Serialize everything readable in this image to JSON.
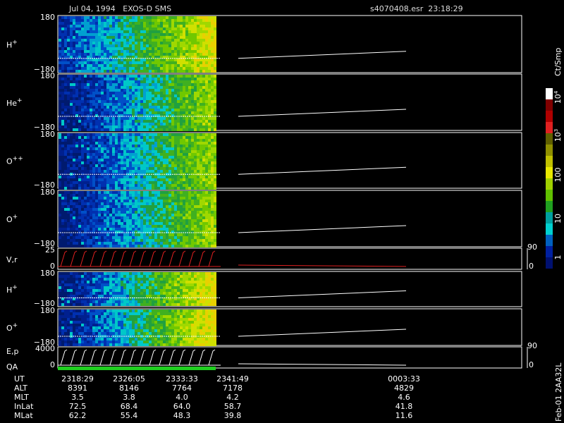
{
  "header": {
    "title": "Jul 04, 1994   EXOS-D SMS",
    "file": "s4070408.esr  23:18:29"
  },
  "panels": [
    {
      "label": "H",
      "sup": "+",
      "top": "180",
      "bottom": "−180"
    },
    {
      "label": "He",
      "sup": "+",
      "top": "180",
      "bottom": "−180"
    },
    {
      "label": "O",
      "sup": "++",
      "top": "180",
      "bottom": "−180"
    },
    {
      "label": "O",
      "sup": "+",
      "top": "180",
      "bottom": "−180"
    },
    {
      "label": "V,r",
      "top": "25",
      "bottom": "0",
      "right_top": "90",
      "right_bottom": "0"
    },
    {
      "label": "H",
      "sup": "+",
      "top": "180",
      "bottom": "−180"
    },
    {
      "label": "O",
      "sup": "+",
      "top": "180",
      "bottom": "−180"
    },
    {
      "label": "E,p",
      "label2": "QA",
      "top": "4000",
      "bottom": "0",
      "right_top": "90",
      "right_bottom": "0"
    }
  ],
  "colorbar": {
    "title": "Ct/Smp",
    "ticks": [
      {
        "base": "10",
        "sup": "4"
      },
      {
        "base": "10",
        "sup": "3"
      },
      {
        "base": "100"
      },
      {
        "base": "10"
      },
      {
        "base": "1"
      }
    ]
  },
  "table": {
    "rows": [
      [
        "UT",
        "2318:29",
        "2326:05",
        "2333:33",
        "2341:49",
        "0003:33"
      ],
      [
        "ALT",
        "8391",
        "8146",
        "7764",
        "7178",
        "4829"
      ],
      [
        "MLT",
        "3.5",
        "3.8",
        "4.0",
        "4.2",
        "4.6"
      ],
      [
        "InLat",
        "72.5",
        "68.4",
        "64.0",
        "58.7",
        "41.8"
      ],
      [
        "MLat",
        "62.2",
        "55.4",
        "48.3",
        "39.8",
        "11.6"
      ]
    ]
  },
  "footer": "Feb-01 2AA32L"
}
